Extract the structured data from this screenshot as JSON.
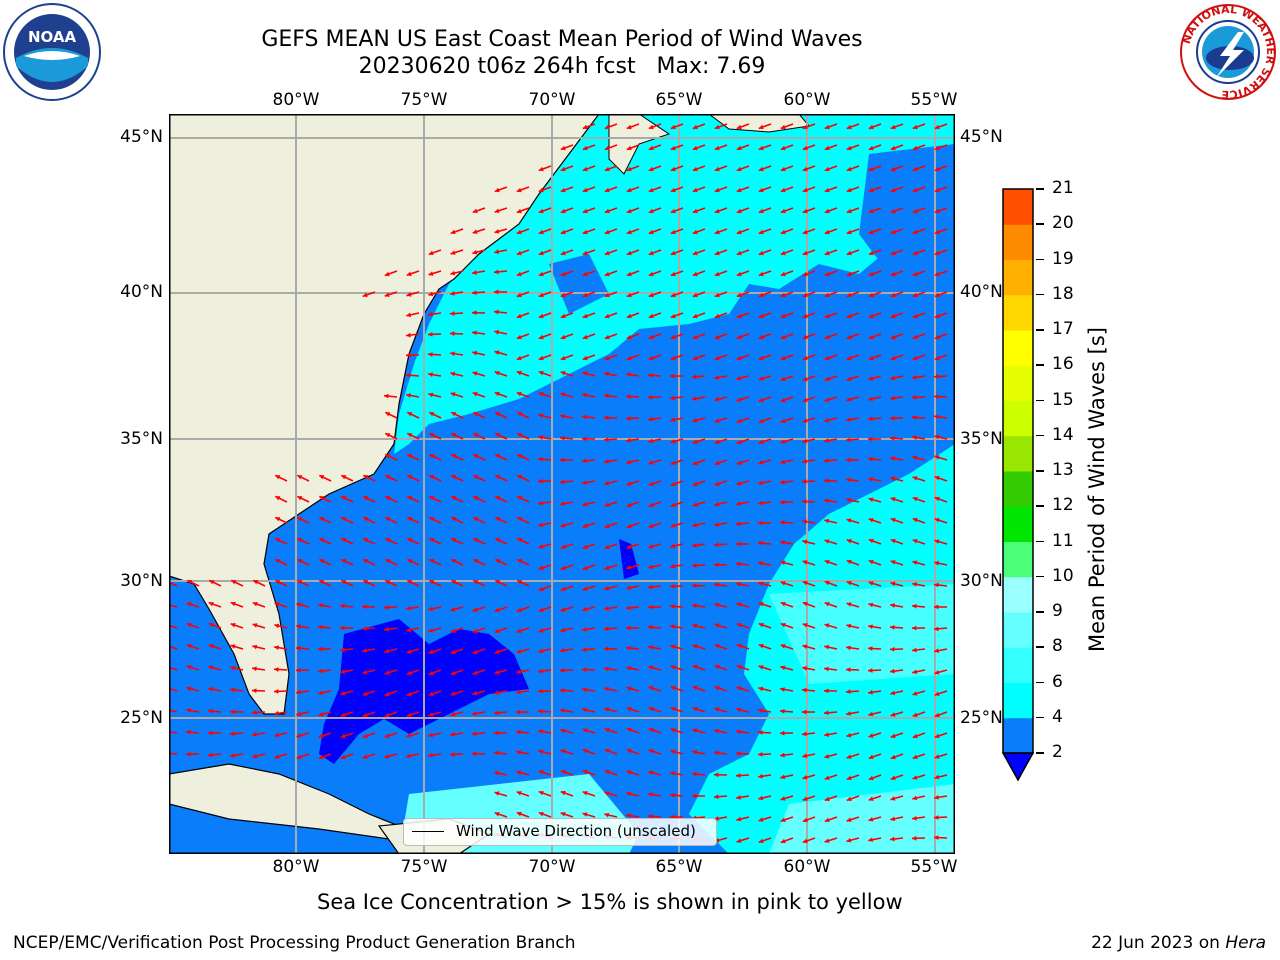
{
  "title": {
    "line1": "GEFS MEAN US East Coast Mean Period of Wind Waves",
    "line2": "20230620 t06z 264h fcst   Max: 7.69"
  },
  "axes": {
    "lon_labels": [
      "80°W",
      "75°W",
      "70°W",
      "65°W",
      "60°W",
      "55°W"
    ],
    "lat_labels": [
      "45°N",
      "40°N",
      "35°N",
      "30°N",
      "25°N"
    ]
  },
  "colorbar": {
    "title": "Mean Period of Wind Waves [s]",
    "ticks": [
      "2",
      "4",
      "6",
      "8",
      "9",
      "10",
      "11",
      "12",
      "13",
      "14",
      "15",
      "16",
      "17",
      "18",
      "19",
      "20",
      "21"
    ],
    "colors": [
      "#0a7dfb",
      "#00ffff",
      "#33ffff",
      "#66ffff",
      "#99ffff",
      "#4cff7a",
      "#00e600",
      "#33cc00",
      "#99e600",
      "#ccff00",
      "#e6ff00",
      "#ffff00",
      "#ffd700",
      "#ffb000",
      "#ff8c00",
      "#ff5000",
      "#ff2800",
      "#ff0000"
    ],
    "under_color": "#0000ff"
  },
  "legend": {
    "label": "Wind Wave Direction (unscaled)"
  },
  "note": "Sea Ice Concentration > 15% is shown in pink to yellow",
  "footer": {
    "left": "NCEP/EMC/Verification Post Processing Product Generation Branch",
    "date": "22 Jun 2023 on ",
    "host": "Hera"
  },
  "logos": {
    "noaa": "NOAA",
    "nws_ring": "NATIONAL WEATHER SERVICE"
  },
  "map_colors": {
    "land": "#efefdd",
    "deep_blue": "#0000ff",
    "mid_blue": "#0a7dfb",
    "cyan": "#00ffff",
    "light_cyan": "#66ffff",
    "arrow": "#ff0000",
    "grid": "#aaaaaa"
  },
  "icons": {
    "noaa_logo": "noaa-logo-icon",
    "nws_logo": "nws-logo-icon",
    "extend_arrow": "colorbar-extend-triangle-icon"
  }
}
